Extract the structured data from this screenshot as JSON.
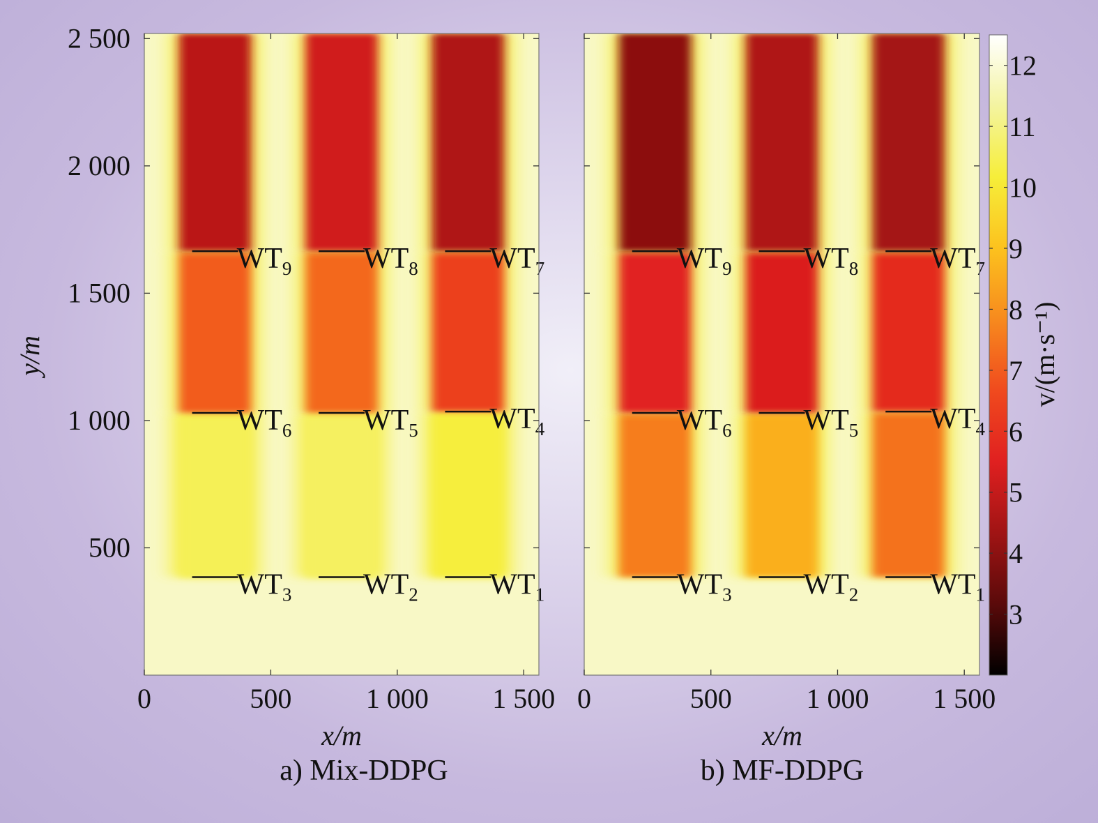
{
  "chart_data": [
    {
      "type": "heatmap",
      "panel": "a",
      "caption": "a) Mix-DDPG",
      "xlabel": "x/m",
      "ylabel": "y/m",
      "xlim": [
        0,
        1560
      ],
      "ylim": [
        0,
        2520
      ],
      "xticks": [
        "0",
        "500",
        "1 000",
        "1 500"
      ],
      "xtick_values": [
        0,
        500,
        1000,
        1500
      ],
      "yticks": [
        "500",
        "1 000",
        "1 500",
        "2 000",
        "2 500"
      ],
      "ytick_values": [
        500,
        1000,
        1500,
        2000,
        2500
      ],
      "background_speed": 11.8,
      "turbines": [
        {
          "name": "WT",
          "sub": "1",
          "x": 1280,
          "y": 385
        },
        {
          "name": "WT",
          "sub": "2",
          "x": 780,
          "y": 385
        },
        {
          "name": "WT",
          "sub": "3",
          "x": 280,
          "y": 385
        },
        {
          "name": "WT",
          "sub": "4",
          "x": 1280,
          "y": 1035
        },
        {
          "name": "WT",
          "sub": "5",
          "x": 780,
          "y": 1030
        },
        {
          "name": "WT",
          "sub": "6",
          "x": 280,
          "y": 1030
        },
        {
          "name": "WT",
          "sub": "7",
          "x": 1280,
          "y": 1665
        },
        {
          "name": "WT",
          "sub": "8",
          "x": 780,
          "y": 1665
        },
        {
          "name": "WT",
          "sub": "9",
          "x": 280,
          "y": 1665
        }
      ],
      "wakes": [
        {
          "x": 280,
          "y_start": 385,
          "y_end": 1030,
          "speed": 10.5
        },
        {
          "x": 780,
          "y_start": 385,
          "y_end": 1030,
          "speed": 10.6
        },
        {
          "x": 1280,
          "y_start": 385,
          "y_end": 1035,
          "speed": 10.2
        },
        {
          "x": 280,
          "y_start": 1030,
          "y_end": 1665,
          "speed": 7.0
        },
        {
          "x": 780,
          "y_start": 1030,
          "y_end": 1665,
          "speed": 7.2
        },
        {
          "x": 1280,
          "y_start": 1035,
          "y_end": 1665,
          "speed": 6.4
        },
        {
          "x": 280,
          "y_start": 1665,
          "y_end": 2520,
          "speed": 4.8
        },
        {
          "x": 780,
          "y_start": 1665,
          "y_end": 2520,
          "speed": 5.2
        },
        {
          "x": 1280,
          "y_start": 1665,
          "y_end": 2520,
          "speed": 4.6
        }
      ]
    },
    {
      "type": "heatmap",
      "panel": "b",
      "caption": "b) MF-DDPG",
      "xlabel": "x/m",
      "xlim": [
        0,
        1560
      ],
      "ylim": [
        0,
        2520
      ],
      "xticks": [
        "0",
        "500",
        "1 000",
        "1 500"
      ],
      "xtick_values": [
        0,
        500,
        1000,
        1500
      ],
      "background_speed": 11.8,
      "turbines": [
        {
          "name": "WT",
          "sub": "1",
          "x": 1280,
          "y": 385
        },
        {
          "name": "WT",
          "sub": "2",
          "x": 780,
          "y": 385
        },
        {
          "name": "WT",
          "sub": "3",
          "x": 280,
          "y": 385
        },
        {
          "name": "WT",
          "sub": "4",
          "x": 1280,
          "y": 1035
        },
        {
          "name": "WT",
          "sub": "5",
          "x": 780,
          "y": 1030
        },
        {
          "name": "WT",
          "sub": "6",
          "x": 280,
          "y": 1030
        },
        {
          "name": "WT",
          "sub": "7",
          "x": 1280,
          "y": 1665
        },
        {
          "name": "WT",
          "sub": "8",
          "x": 780,
          "y": 1665
        },
        {
          "name": "WT",
          "sub": "9",
          "x": 280,
          "y": 1665
        }
      ],
      "wakes": [
        {
          "x": 280,
          "y_start": 385,
          "y_end": 1030,
          "speed": 7.6
        },
        {
          "x": 780,
          "y_start": 385,
          "y_end": 1030,
          "speed": 8.6
        },
        {
          "x": 1280,
          "y_start": 385,
          "y_end": 1035,
          "speed": 7.4
        },
        {
          "x": 280,
          "y_start": 1030,
          "y_end": 1665,
          "speed": 5.6
        },
        {
          "x": 780,
          "y_start": 1030,
          "y_end": 1665,
          "speed": 5.4
        },
        {
          "x": 1280,
          "y_start": 1035,
          "y_end": 1665,
          "speed": 5.8
        },
        {
          "x": 280,
          "y_start": 1665,
          "y_end": 2520,
          "speed": 4.0
        },
        {
          "x": 780,
          "y_start": 1665,
          "y_end": 2520,
          "speed": 4.6
        },
        {
          "x": 1280,
          "y_start": 1665,
          "y_end": 2520,
          "speed": 4.4
        }
      ]
    }
  ],
  "colorbar": {
    "label": "v/(m·s⁻¹)",
    "min": 2,
    "max": 12.5,
    "ticks": [
      "3",
      "4",
      "5",
      "6",
      "7",
      "8",
      "9",
      "10",
      "11",
      "12"
    ],
    "tick_values": [
      3,
      4,
      5,
      6,
      7,
      8,
      9,
      10,
      11,
      12
    ],
    "colormap": "hot",
    "colors": [
      "#000000",
      "#5a0a0a",
      "#a01414",
      "#e02020",
      "#f04a1e",
      "#f78a1e",
      "#fcc21e",
      "#f6ee3a",
      "#f4f4a0",
      "#ffffff"
    ]
  }
}
